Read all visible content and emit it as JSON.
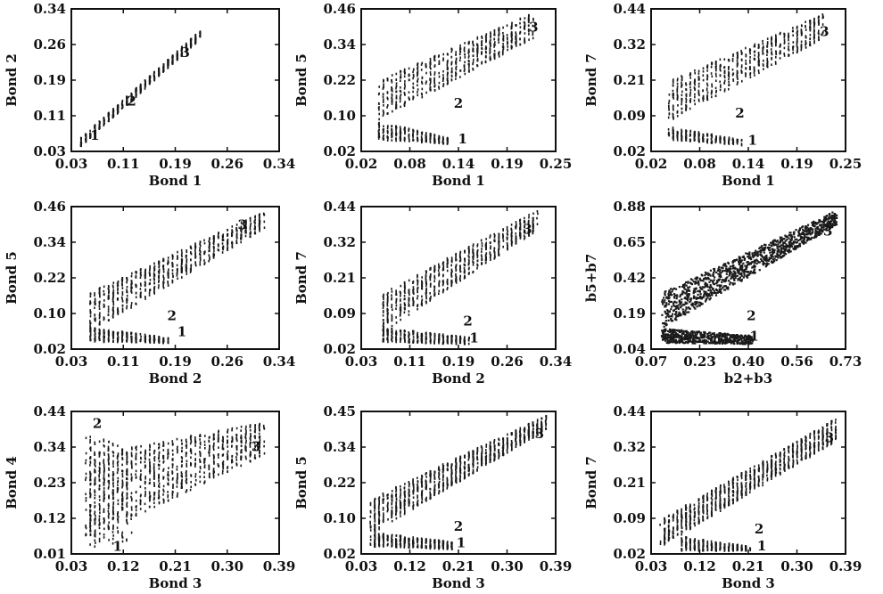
{
  "chart_data": [
    {
      "type": "scatter",
      "xlabel": "Bond 1",
      "ylabel": "Bond 2",
      "xticks": [
        "0.03",
        "0.11",
        "0.19",
        "0.26",
        "0.34"
      ],
      "yticks": [
        "0.03",
        "0.11",
        "0.19",
        "0.26",
        "0.34"
      ],
      "xlim": [
        0.03,
        0.34
      ],
      "ylim": [
        0.03,
        0.34
      ],
      "regions": [
        {
          "label": "1",
          "x": 0.065,
          "y": 0.055
        },
        {
          "label": "2",
          "x": 0.12,
          "y": 0.13
        },
        {
          "label": "3",
          "x": 0.2,
          "y": 0.235
        }
      ]
    },
    {
      "type": "scatter",
      "xlabel": "Bond 1",
      "ylabel": "Bond 5",
      "xticks": [
        "0.02",
        "0.08",
        "0.14",
        "0.19",
        "0.25"
      ],
      "yticks": [
        "0.02",
        "0.10",
        "0.22",
        "0.34",
        "0.46"
      ],
      "xlim": [
        0.02,
        0.25
      ],
      "ylim": [
        0.02,
        0.46
      ],
      "regions": [
        {
          "label": "1",
          "x": 0.14,
          "y": 0.045
        },
        {
          "label": "2",
          "x": 0.135,
          "y": 0.155
        },
        {
          "label": "3",
          "x": 0.224,
          "y": 0.39
        }
      ]
    },
    {
      "type": "scatter",
      "xlabel": "Bond 1",
      "ylabel": "Bond 7",
      "xticks": [
        "0.02",
        "0.08",
        "0.14",
        "0.19",
        "0.25"
      ],
      "yticks": [
        "0.02",
        "0.09",
        "0.21",
        "0.32",
        "0.44"
      ],
      "xlim": [
        0.02,
        0.25
      ],
      "ylim": [
        0.02,
        0.44
      ],
      "regions": [
        {
          "label": "1",
          "x": 0.14,
          "y": 0.04
        },
        {
          "label": "2",
          "x": 0.125,
          "y": 0.12
        },
        {
          "label": "3",
          "x": 0.225,
          "y": 0.36
        }
      ]
    },
    {
      "type": "scatter",
      "xlabel": "Bond 2",
      "ylabel": "Bond 5",
      "xticks": [
        "0.03",
        "0.11",
        "0.19",
        "0.26",
        "0.34"
      ],
      "yticks": [
        "0.02",
        "0.10",
        "0.22",
        "0.34",
        "0.46"
      ],
      "xlim": [
        0.03,
        0.34
      ],
      "ylim": [
        0.02,
        0.46
      ],
      "regions": [
        {
          "label": "1",
          "x": 0.195,
          "y": 0.06
        },
        {
          "label": "2",
          "x": 0.18,
          "y": 0.11
        },
        {
          "label": "3",
          "x": 0.285,
          "y": 0.39
        }
      ]
    },
    {
      "type": "scatter",
      "xlabel": "Bond 2",
      "ylabel": "Bond 7",
      "xticks": [
        "0.03",
        "0.11",
        "0.19",
        "0.26",
        "0.34"
      ],
      "yticks": [
        "0.02",
        "0.09",
        "0.21",
        "0.32",
        "0.44"
      ],
      "xlim": [
        0.03,
        0.34
      ],
      "ylim": [
        0.02,
        0.44
      ],
      "regions": [
        {
          "label": "1",
          "x": 0.21,
          "y": 0.04
        },
        {
          "label": "2",
          "x": 0.2,
          "y": 0.09
        },
        {
          "label": "3",
          "x": 0.295,
          "y": 0.36
        }
      ]
    },
    {
      "type": "scatter",
      "xlabel": "b2+b3",
      "ylabel": "b5+b7",
      "xticks": [
        "0.07",
        "0.23",
        "0.40",
        "0.56",
        "0.73"
      ],
      "yticks": [
        "0.04",
        "0.19",
        "0.42",
        "0.65",
        "0.88"
      ],
      "xlim": [
        0.07,
        0.73
      ],
      "ylim": [
        0.04,
        0.88
      ],
      "regions": [
        {
          "label": "1",
          "x": 0.42,
          "y": 0.09
        },
        {
          "label": "2",
          "x": 0.41,
          "y": 0.21
        },
        {
          "label": "3",
          "x": 0.67,
          "y": 0.71
        }
      ]
    },
    {
      "type": "scatter",
      "xlabel": "Bond 3",
      "ylabel": "Bond 4",
      "xticks": [
        "0.03",
        "0.12",
        "0.21",
        "0.30",
        "0.39"
      ],
      "yticks": [
        "0.01",
        "0.12",
        "0.23",
        "0.34",
        "0.44"
      ],
      "xlim": [
        0.03,
        0.39
      ],
      "ylim": [
        0.01,
        0.44
      ],
      "regions": [
        {
          "label": "1",
          "x": 0.11,
          "y": 0.02
        },
        {
          "label": "2",
          "x": 0.075,
          "y": 0.39
        },
        {
          "label": "3",
          "x": 0.35,
          "y": 0.32
        }
      ]
    },
    {
      "type": "scatter",
      "xlabel": "Bond 3",
      "ylabel": "Bond 5",
      "xticks": [
        "0.03",
        "0.12",
        "0.21",
        "0.30",
        "0.39"
      ],
      "yticks": [
        "0.02",
        "0.10",
        "0.22",
        "0.34",
        "0.45"
      ],
      "xlim": [
        0.03,
        0.39
      ],
      "ylim": [
        0.02,
        0.45
      ],
      "regions": [
        {
          "label": "1",
          "x": 0.215,
          "y": 0.04
        },
        {
          "label": "2",
          "x": 0.21,
          "y": 0.09
        },
        {
          "label": "3",
          "x": 0.36,
          "y": 0.37
        }
      ]
    },
    {
      "type": "scatter",
      "xlabel": "Bond 3",
      "ylabel": "Bond 7",
      "xticks": [
        "0.03",
        "0.12",
        "0.21",
        "0.30",
        "0.39"
      ],
      "yticks": [
        "0.02",
        "0.09",
        "0.21",
        "0.32",
        "0.44"
      ],
      "xlim": [
        0.03,
        0.39
      ],
      "ylim": [
        0.02,
        0.44
      ],
      "regions": [
        {
          "label": "1",
          "x": 0.235,
          "y": 0.03
        },
        {
          "label": "2",
          "x": 0.23,
          "y": 0.08
        },
        {
          "label": "3",
          "x": 0.36,
          "y": 0.35
        }
      ]
    }
  ]
}
